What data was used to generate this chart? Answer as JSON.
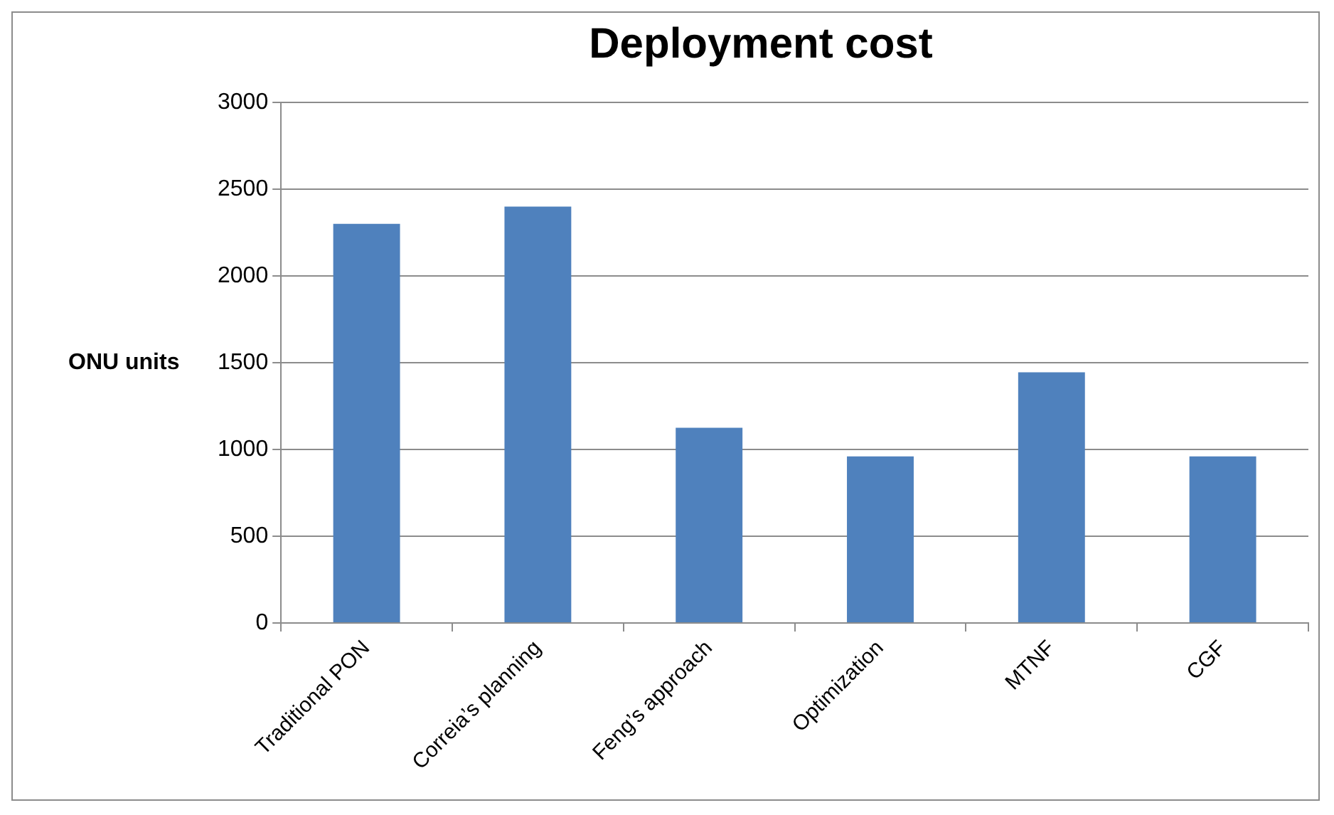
{
  "chart_data": {
    "type": "bar",
    "title": "Deployment cost",
    "ylabel": "ONU units",
    "categories": [
      "Traditional PON",
      "Correia’s planning",
      "Feng’s approach",
      "Optimization",
      "MTNF",
      "CGF"
    ],
    "values": [
      2300,
      2400,
      1125,
      960,
      1445,
      960
    ],
    "color": "#4f81bd",
    "ylim": [
      0,
      3000
    ],
    "yticks": [
      0,
      500,
      1000,
      1500,
      2000,
      2500,
      3000
    ],
    "grid": "y",
    "legend": false
  }
}
